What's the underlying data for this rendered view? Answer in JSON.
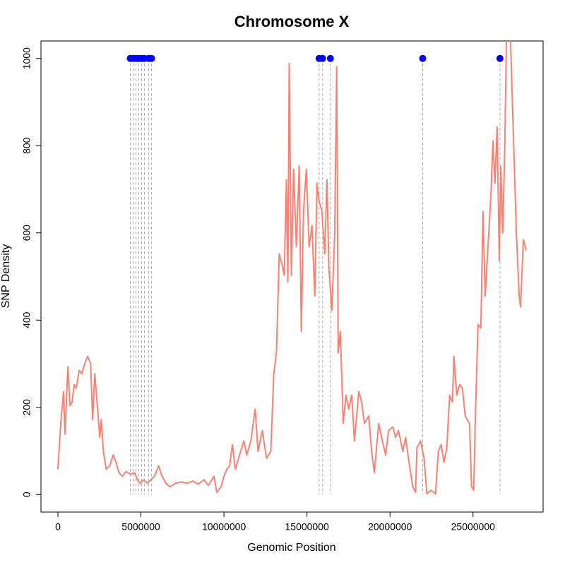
{
  "chart_data": {
    "type": "line",
    "title": "Chromosome X",
    "x_label": "Genomic Position",
    "y_label": "SNP Density",
    "color": "#fa8072",
    "xlim": [
      -1020000,
      29220000
    ],
    "ylim": [
      -40,
      1040
    ],
    "xticks": [
      0,
      5000000,
      10000000,
      15000000,
      20000000,
      25000000
    ],
    "yticks": [
      0,
      200,
      400,
      600,
      800,
      1000
    ],
    "x": [
      0,
      170000,
      340000,
      430000,
      600000,
      730000,
      850000,
      980000,
      1110000,
      1280000,
      1450000,
      1620000,
      1790000,
      1970000,
      2090000,
      2220000,
      2390000,
      2520000,
      2610000,
      2740000,
      2910000,
      3120000,
      3330000,
      3500000,
      3680000,
      3890000,
      4100000,
      4360000,
      4620000,
      4790000,
      4960000,
      5170000,
      5380000,
      5600000,
      5810000,
      6070000,
      6240000,
      6500000,
      6750000,
      7090000,
      7440000,
      7780000,
      8120000,
      8460000,
      8800000,
      9060000,
      9400000,
      9570000,
      9830000,
      10000000,
      10170000,
      10340000,
      10510000,
      10680000,
      10940000,
      11200000,
      11370000,
      11620000,
      11880000,
      12050000,
      12310000,
      12560000,
      12820000,
      13000000,
      13160000,
      13330000,
      13500000,
      13630000,
      13760000,
      13850000,
      13930000,
      14060000,
      14190000,
      14360000,
      14530000,
      14660000,
      14790000,
      14960000,
      15130000,
      15300000,
      15470000,
      15600000,
      15730000,
      15900000,
      16070000,
      16200000,
      16320000,
      16500000,
      16670000,
      16790000,
      16880000,
      17010000,
      17180000,
      17350000,
      17520000,
      17690000,
      17860000,
      18120000,
      18290000,
      18460000,
      18720000,
      18890000,
      19060000,
      19320000,
      19490000,
      19740000,
      19910000,
      20170000,
      20340000,
      20510000,
      20770000,
      20940000,
      21110000,
      21370000,
      21540000,
      21620000,
      21840000,
      22050000,
      22220000,
      22480000,
      22740000,
      22910000,
      23080000,
      23250000,
      23420000,
      23590000,
      23760000,
      23850000,
      24020000,
      24190000,
      24360000,
      24530000,
      24790000,
      24910000,
      25040000,
      25130000,
      25300000,
      25470000,
      25600000,
      25730000,
      25900000,
      26070000,
      26200000,
      26320000,
      26450000,
      26580000,
      26670000,
      26790000,
      26920000,
      27050000,
      27260000,
      27440000,
      27610000,
      27780000,
      27860000,
      28030000,
      28210000
    ],
    "values": [
      58,
      163,
      236,
      139,
      293,
      204,
      212,
      252,
      244,
      285,
      277,
      301,
      317,
      301,
      172,
      277,
      196,
      131,
      172,
      99,
      58,
      66,
      91,
      74,
      50,
      42,
      53,
      47,
      50,
      34,
      26,
      34,
      26,
      34,
      42,
      66,
      45,
      26,
      18,
      26,
      29,
      26,
      31,
      24,
      34,
      21,
      42,
      5,
      18,
      42,
      58,
      66,
      115,
      58,
      91,
      123,
      91,
      123,
      196,
      99,
      147,
      83,
      99,
      277,
      325,
      552,
      527,
      503,
      722,
      487,
      989,
      503,
      746,
      568,
      754,
      374,
      649,
      746,
      568,
      617,
      455,
      714,
      673,
      649,
      552,
      722,
      519,
      422,
      600,
      981,
      325,
      374,
      163,
      228,
      196,
      228,
      123,
      236,
      212,
      163,
      180,
      99,
      50,
      163,
      131,
      91,
      147,
      155,
      131,
      147,
      99,
      131,
      83,
      18,
      5,
      107,
      123,
      83,
      2,
      10,
      2,
      99,
      115,
      74,
      107,
      228,
      212,
      317,
      228,
      252,
      244,
      180,
      163,
      18,
      10,
      163,
      390,
      382,
      649,
      455,
      568,
      681,
      811,
      714,
      843,
      536,
      754,
      600,
      811,
      1150,
      1037,
      811,
      600,
      455,
      430,
      584,
      560
    ],
    "markers": {
      "color": "#0000ff",
      "x": [
        4360000,
        4530000,
        4700000,
        4870000,
        5040000,
        5210000,
        5470000,
        5640000,
        15730000,
        15940000,
        16410000,
        21970000,
        26620000
      ],
      "values": [
        1000,
        1000,
        1000,
        1000,
        1000,
        1000,
        1000,
        1000,
        1000,
        1000,
        1000,
        1000,
        1000
      ]
    }
  }
}
